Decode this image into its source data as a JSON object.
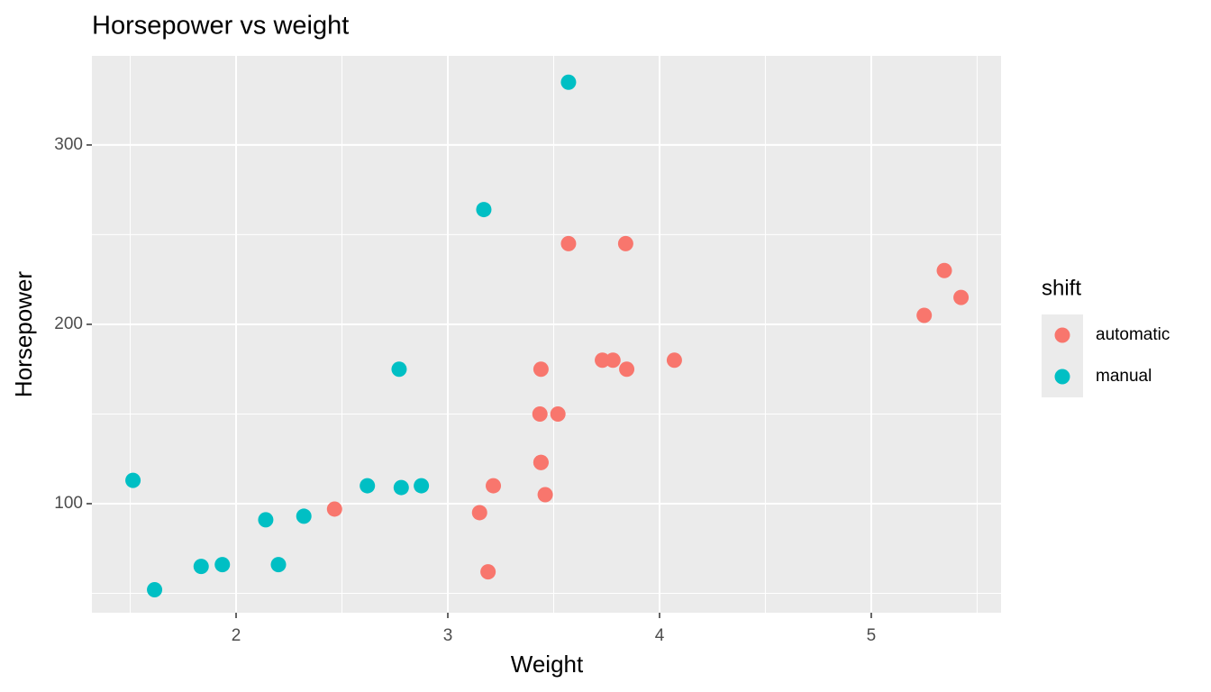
{
  "chart_data": {
    "type": "scatter",
    "title": "Horsepower vs weight",
    "x_label": "Weight",
    "y_label": "Horsepower",
    "legend_title": "shift",
    "legend_position": "right",
    "xlim": [
      1.319,
      5.613
    ],
    "ylim": [
      39.2,
      349.7
    ],
    "xticks": [
      2,
      3,
      4,
      5
    ],
    "yticks": [
      100,
      200,
      300
    ],
    "grid": true,
    "series": [
      {
        "name": "automatic",
        "color": "#F8766D",
        "x": [
          3.215,
          3.44,
          3.46,
          3.57,
          3.19,
          3.15,
          3.44,
          3.44,
          4.07,
          3.73,
          3.78,
          5.25,
          5.424,
          5.345,
          2.465,
          3.52,
          3.435,
          3.84,
          3.845
        ],
        "values": [
          110,
          175,
          105,
          245,
          62,
          95,
          123,
          123,
          180,
          180,
          180,
          205,
          215,
          230,
          97,
          150,
          150,
          245,
          175
        ]
      },
      {
        "name": "manual",
        "color": "#00BFC4",
        "x": [
          2.62,
          2.875,
          2.32,
          2.2,
          1.615,
          1.835,
          1.935,
          2.14,
          1.513,
          3.17,
          2.77,
          3.57,
          2.78
        ],
        "values": [
          110,
          110,
          93,
          66,
          52,
          65,
          66,
          91,
          113,
          264,
          175,
          335,
          109
        ]
      }
    ]
  }
}
